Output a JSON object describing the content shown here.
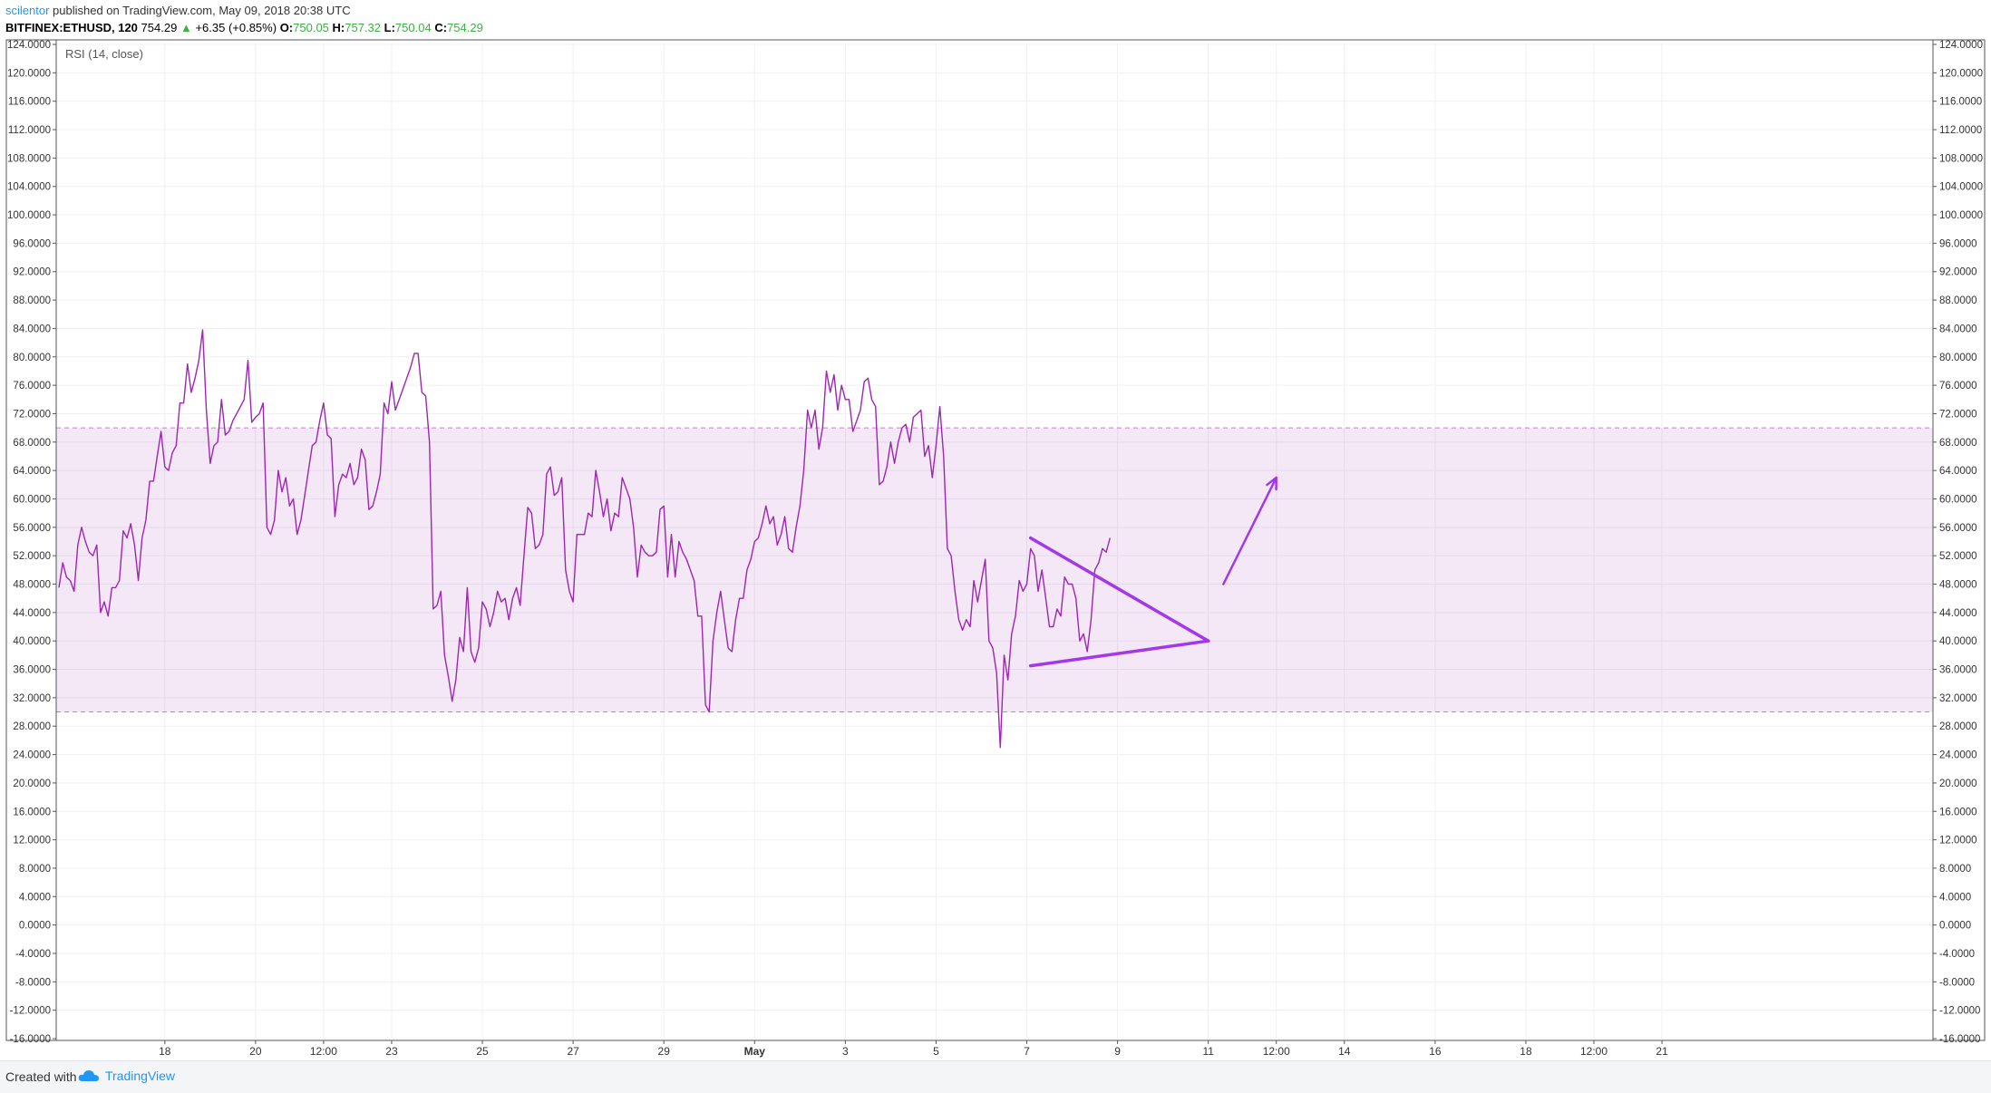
{
  "header": {
    "author": "scilentor",
    "published": " published on TradingView.com, May 09, 2018 20:38 UTC"
  },
  "ticker": {
    "symbol": "BITFINEX:ETHUSD, 120",
    "price": "754.29",
    "arrow": "▲",
    "change": "+6.35 (+0.85%)",
    "o_label": "O:",
    "o": "750.05",
    "h_label": "H:",
    "h": "757.32",
    "l_label": "L:",
    "l": "750.04",
    "c_label": "C:",
    "c": "754.29"
  },
  "indicator_label": "RSI (14, close)",
  "footer": {
    "created": "Created with",
    "brand": "TradingView"
  },
  "chart_data": {
    "type": "line",
    "ylim": [
      -16,
      124
    ],
    "y_ticks": [
      "124.0000",
      "120.0000",
      "116.0000",
      "112.0000",
      "108.0000",
      "104.0000",
      "100.0000",
      "96.0000",
      "92.0000",
      "88.0000",
      "84.0000",
      "80.0000",
      "76.0000",
      "72.0000",
      "68.0000",
      "64.0000",
      "60.0000",
      "56.0000",
      "52.0000",
      "48.0000",
      "44.0000",
      "40.0000",
      "36.0000",
      "32.0000",
      "28.0000",
      "24.0000",
      "20.0000",
      "16.0000",
      "12.0000",
      "8.0000",
      "4.0000",
      "0.0000",
      "-4.0000",
      "-8.0000",
      "-12.0000",
      "-16.0000"
    ],
    "x_ticks": [
      {
        "label": "18",
        "bar": 28
      },
      {
        "label": "20",
        "bar": 52
      },
      {
        "label": "12:00",
        "bar": 70
      },
      {
        "label": "23",
        "bar": 88
      },
      {
        "label": "25",
        "bar": 112
      },
      {
        "label": "27",
        "bar": 136
      },
      {
        "label": "29",
        "bar": 160
      },
      {
        "label": "May",
        "bar": 184
      },
      {
        "label": "3",
        "bar": 208
      },
      {
        "label": "5",
        "bar": 232
      },
      {
        "label": "7",
        "bar": 256
      },
      {
        "label": "9",
        "bar": 280
      },
      {
        "label": "11",
        "bar": 304
      },
      {
        "label": "12:00",
        "bar": 322
      },
      {
        "label": "14",
        "bar": 340
      },
      {
        "label": "16",
        "bar": 364
      },
      {
        "label": "18",
        "bar": 388
      },
      {
        "label": "12:00",
        "bar": 406
      },
      {
        "label": "21",
        "bar": 424
      }
    ],
    "bands": {
      "upper": 70,
      "lower": 30
    },
    "series": [
      {
        "color": "#9c27b0",
        "values": [
          47.5,
          51,
          49,
          48.5,
          47,
          53.5,
          56,
          54,
          52.5,
          52,
          53.5,
          44,
          45.5,
          43.5,
          47.5,
          47.5,
          48.5,
          55.5,
          54.5,
          56.5,
          53.5,
          48.5,
          54.5,
          57,
          62.5,
          62.5,
          66,
          69.5,
          64.5,
          64,
          66.5,
          67.5,
          73.5,
          73.5,
          79,
          75,
          77,
          79.5,
          83.8,
          72.5,
          65,
          67.5,
          68,
          74,
          69,
          69.5,
          71,
          72,
          73,
          74,
          79.5,
          70.8,
          71.5,
          72,
          73.5,
          56,
          55,
          57,
          64,
          61,
          63,
          59,
          60,
          55,
          57,
          60.5,
          64,
          67.5,
          68,
          71,
          73.5,
          69,
          68.5,
          57.5,
          62,
          63.5,
          63,
          65,
          62,
          63,
          67,
          65.5,
          58.5,
          59,
          61,
          63.5,
          73.5,
          72,
          76.5,
          72.5,
          74,
          75.5,
          77,
          78.5,
          80.5,
          80.5,
          75,
          74.5,
          68,
          44.5,
          45,
          47,
          38,
          35,
          31.5,
          34.5,
          40.5,
          38.5,
          47.5,
          38.5,
          37,
          39,
          45.5,
          44.5,
          42,
          44,
          47,
          45.5,
          46,
          43,
          46,
          47.5,
          45,
          52,
          58.8,
          58,
          53,
          53.5,
          55,
          63.5,
          64.5,
          60.5,
          61,
          63,
          50,
          47,
          45.5,
          55,
          55,
          55,
          58,
          57.5,
          64,
          61,
          57.5,
          60,
          55.5,
          58,
          57.5,
          63,
          61.5,
          60,
          56,
          49,
          53.5,
          52.5,
          52,
          52,
          52.5,
          58.5,
          59,
          49,
          55,
          49,
          54,
          52.5,
          51.5,
          50,
          48.5,
          43.5,
          43.5,
          31,
          30,
          40,
          44,
          47,
          43,
          39,
          38.5,
          43,
          46,
          46,
          50,
          51.5,
          54,
          54.5,
          56.5,
          59,
          56.5,
          57.5,
          53.5,
          55,
          57.5,
          53,
          52.5,
          56,
          59,
          64,
          72.5,
          70,
          72.5,
          67,
          70,
          78,
          75,
          77.5,
          72.5,
          76,
          74,
          74,
          69.5,
          71,
          72.5,
          76.5,
          77,
          74,
          73,
          62,
          62.5,
          64.5,
          68,
          65,
          68,
          70,
          70.5,
          68,
          71.5,
          72,
          72.5,
          66,
          67.5,
          63,
          67.5,
          73,
          66,
          53,
          52,
          47,
          43,
          41.5,
          43,
          42,
          48.5,
          45.5,
          48.5,
          51.5,
          40,
          39,
          35.5,
          25,
          38,
          34.5,
          41,
          43.5,
          48.5,
          47,
          48,
          53,
          52,
          47,
          50,
          46,
          42,
          42,
          44.5,
          43.5,
          49,
          48,
          48,
          46,
          40,
          41,
          38.5,
          43,
          50,
          51,
          53,
          52.5,
          54.5
        ]
      }
    ],
    "annotations": [
      {
        "type": "line",
        "color": "#a238e8",
        "from": [
          257,
          54.5
        ],
        "to": [
          304,
          40
        ]
      },
      {
        "type": "line",
        "color": "#a238e8",
        "from": [
          257,
          36.5
        ],
        "to": [
          304,
          40
        ]
      },
      {
        "type": "arrow",
        "color": "#a238e8",
        "from": [
          308,
          48
        ],
        "to": [
          322,
          63
        ]
      }
    ]
  }
}
